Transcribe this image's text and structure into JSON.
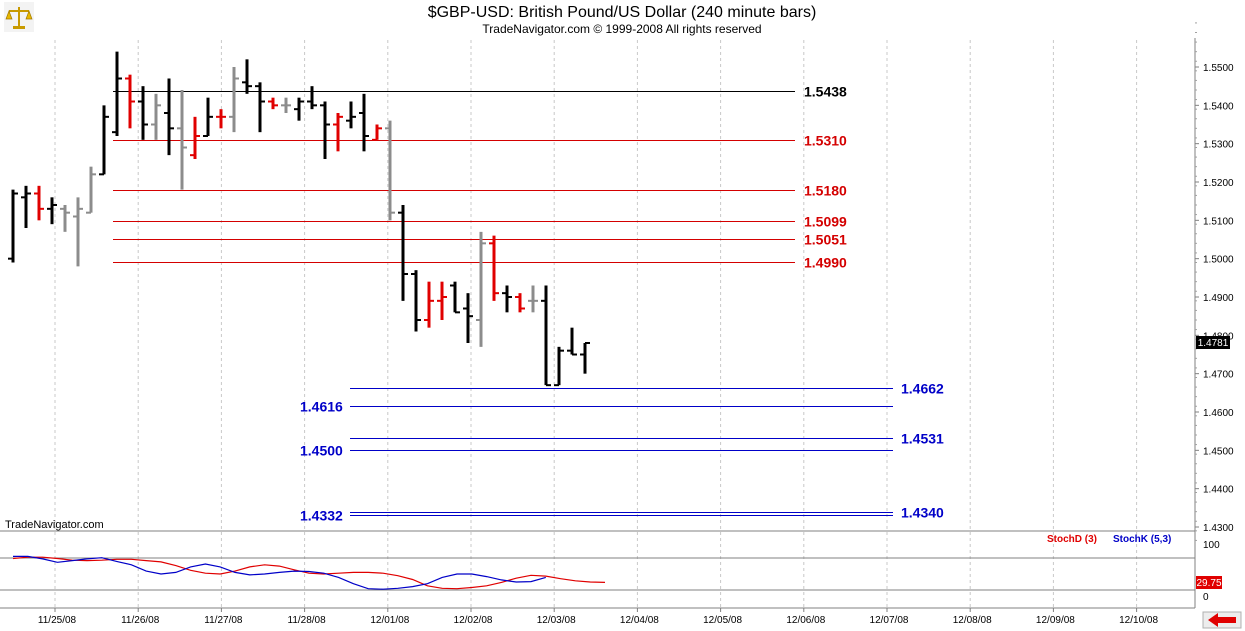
{
  "title": "$GBP-USD:  British Pound/US Dollar  (240 minute bars)",
  "subtitle": "TradeNavigator.com © 1999-2008 All rights reserved",
  "watermark": "TradeNavigator.com",
  "colors": {
    "up": "#000000",
    "down": "#e00000",
    "neutral": "#8c8c8c",
    "resistance": "#d40000",
    "support": "#0000c8",
    "stochD": "#e00000",
    "stochK": "#0000c8"
  },
  "icons": {
    "logo": "gold-scales-icon",
    "scroll": "red-left-arrow-icon"
  },
  "current_price": "1.4781",
  "chart_data": [
    {
      "type": "ohlc",
      "title": "$GBP-USD:  British Pound/US Dollar  (240 minute bars)",
      "ylim": [
        1.4265,
        1.5615
      ],
      "yticks": [
        "1.5500",
        "1.5400",
        "1.5300",
        "1.5200",
        "1.5100",
        "1.5000",
        "1.4900",
        "1.4800",
        "1.4700",
        "1.4600",
        "1.4500",
        "1.4400",
        "1.4300"
      ],
      "x_categories": [
        "11/25/08",
        "11/26/08",
        "11/27/08",
        "11/28/08",
        "12/01/08",
        "12/02/08",
        "12/03/08",
        "12/04/08",
        "12/05/08",
        "12/06/08",
        "12/07/08",
        "12/08/08",
        "12/09/08",
        "12/10/08"
      ],
      "bars": [
        {
          "o": 1.5,
          "h": 1.518,
          "l": 1.499,
          "c": 1.517,
          "d": "up"
        },
        {
          "o": 1.516,
          "h": 1.519,
          "l": 1.508,
          "c": 1.517,
          "d": "up"
        },
        {
          "o": 1.517,
          "h": 1.519,
          "l": 1.51,
          "c": 1.513,
          "d": "down"
        },
        {
          "o": 1.513,
          "h": 1.516,
          "l": 1.509,
          "c": 1.514,
          "d": "up"
        },
        {
          "o": 1.513,
          "h": 1.514,
          "l": 1.507,
          "c": 1.512,
          "d": "neutral"
        },
        {
          "o": 1.511,
          "h": 1.516,
          "l": 1.498,
          "c": 1.513,
          "d": "neutral"
        },
        {
          "o": 1.512,
          "h": 1.524,
          "l": 1.512,
          "c": 1.522,
          "d": "neutral"
        },
        {
          "o": 1.522,
          "h": 1.54,
          "l": 1.522,
          "c": 1.537,
          "d": "up"
        },
        {
          "o": 1.533,
          "h": 1.554,
          "l": 1.532,
          "c": 1.547,
          "d": "up"
        },
        {
          "o": 1.547,
          "h": 1.548,
          "l": 1.534,
          "c": 1.541,
          "d": "down"
        },
        {
          "o": 1.541,
          "h": 1.545,
          "l": 1.531,
          "c": 1.535,
          "d": "up"
        },
        {
          "o": 1.535,
          "h": 1.543,
          "l": 1.531,
          "c": 1.54,
          "d": "neutral"
        },
        {
          "o": 1.538,
          "h": 1.547,
          "l": 1.527,
          "c": 1.534,
          "d": "up"
        },
        {
          "o": 1.534,
          "h": 1.544,
          "l": 1.518,
          "c": 1.529,
          "d": "neutral"
        },
        {
          "o": 1.527,
          "h": 1.537,
          "l": 1.526,
          "c": 1.532,
          "d": "down"
        },
        {
          "o": 1.532,
          "h": 1.542,
          "l": 1.532,
          "c": 1.537,
          "d": "up"
        },
        {
          "o": 1.537,
          "h": 1.539,
          "l": 1.534,
          "c": 1.537,
          "d": "down"
        },
        {
          "o": 1.537,
          "h": 1.55,
          "l": 1.533,
          "c": 1.547,
          "d": "neutral"
        },
        {
          "o": 1.546,
          "h": 1.552,
          "l": 1.543,
          "c": 1.545,
          "d": "up"
        },
        {
          "o": 1.545,
          "h": 1.546,
          "l": 1.533,
          "c": 1.541,
          "d": "up"
        },
        {
          "o": 1.541,
          "h": 1.542,
          "l": 1.539,
          "c": 1.54,
          "d": "down"
        },
        {
          "o": 1.54,
          "h": 1.542,
          "l": 1.538,
          "c": 1.54,
          "d": "neutral"
        },
        {
          "o": 1.539,
          "h": 1.542,
          "l": 1.536,
          "c": 1.541,
          "d": "up"
        },
        {
          "o": 1.541,
          "h": 1.545,
          "l": 1.539,
          "c": 1.54,
          "d": "up"
        },
        {
          "o": 1.54,
          "h": 1.541,
          "l": 1.526,
          "c": 1.535,
          "d": "up"
        },
        {
          "o": 1.535,
          "h": 1.538,
          "l": 1.528,
          "c": 1.537,
          "d": "down"
        },
        {
          "o": 1.536,
          "h": 1.541,
          "l": 1.534,
          "c": 1.537,
          "d": "up"
        },
        {
          "o": 1.538,
          "h": 1.543,
          "l": 1.528,
          "c": 1.532,
          "d": "up"
        },
        {
          "o": 1.531,
          "h": 1.535,
          "l": 1.531,
          "c": 1.534,
          "d": "down"
        },
        {
          "o": 1.534,
          "h": 1.536,
          "l": 1.51,
          "c": 1.512,
          "d": "neutral"
        },
        {
          "o": 1.512,
          "h": 1.514,
          "l": 1.489,
          "c": 1.496,
          "d": "up"
        },
        {
          "o": 1.496,
          "h": 1.497,
          "l": 1.481,
          "c": 1.484,
          "d": "up"
        },
        {
          "o": 1.484,
          "h": 1.494,
          "l": 1.482,
          "c": 1.489,
          "d": "down"
        },
        {
          "o": 1.489,
          "h": 1.494,
          "l": 1.484,
          "c": 1.49,
          "d": "down"
        },
        {
          "o": 1.493,
          "h": 1.494,
          "l": 1.486,
          "c": 1.486,
          "d": "up"
        },
        {
          "o": 1.487,
          "h": 1.491,
          "l": 1.478,
          "c": 1.485,
          "d": "up"
        },
        {
          "o": 1.484,
          "h": 1.507,
          "l": 1.477,
          "c": 1.504,
          "d": "neutral"
        },
        {
          "o": 1.504,
          "h": 1.506,
          "l": 1.489,
          "c": 1.491,
          "d": "down"
        },
        {
          "o": 1.491,
          "h": 1.493,
          "l": 1.486,
          "c": 1.49,
          "d": "up"
        },
        {
          "o": 1.49,
          "h": 1.491,
          "l": 1.486,
          "c": 1.487,
          "d": "down"
        },
        {
          "o": 1.489,
          "h": 1.493,
          "l": 1.486,
          "c": 1.489,
          "d": "neutral"
        },
        {
          "o": 1.489,
          "h": 1.493,
          "l": 1.467,
          "c": 1.467,
          "d": "up"
        },
        {
          "o": 1.467,
          "h": 1.477,
          "l": 1.467,
          "c": 1.476,
          "d": "up"
        },
        {
          "o": 1.476,
          "h": 1.482,
          "l": 1.475,
          "c": 1.475,
          "d": "up"
        },
        {
          "o": 1.475,
          "h": 1.478,
          "l": 1.47,
          "c": 1.478,
          "d": "up"
        }
      ],
      "resistance_levels": [
        {
          "value": 1.5438,
          "label": "1.5438",
          "color": "black"
        },
        {
          "value": 1.531,
          "label": "1.5310",
          "color": "red"
        },
        {
          "value": 1.518,
          "label": "1.5180",
          "color": "red"
        },
        {
          "value": 1.5099,
          "label": "1.5099",
          "color": "red"
        },
        {
          "value": 1.5051,
          "label": "1.5051",
          "color": "red"
        },
        {
          "value": 1.499,
          "label": "1.4990",
          "color": "red"
        }
      ],
      "support_levels": [
        {
          "value": 1.4662,
          "label": "1.4662",
          "side": "right"
        },
        {
          "value": 1.4616,
          "label": "1.4616",
          "side": "left"
        },
        {
          "value": 1.4531,
          "label": "1.4531",
          "side": "right"
        },
        {
          "value": 1.45,
          "label": "1.4500",
          "side": "left"
        },
        {
          "value": 1.434,
          "label": "1.4340",
          "side": "right"
        },
        {
          "value": 1.4332,
          "label": "1.4332",
          "side": "left"
        }
      ]
    },
    {
      "type": "line",
      "title": "",
      "ylim": [
        0,
        100
      ],
      "yticks": [
        "100",
        "0"
      ],
      "current_value": "29.75",
      "series": [
        {
          "name": "StochD (3)",
          "color": "red",
          "values": [
            75,
            78,
            78,
            75,
            71,
            70,
            71,
            73,
            73,
            70,
            67,
            58,
            47,
            40,
            38,
            45,
            55,
            60,
            57,
            48,
            40,
            38,
            40,
            42,
            42,
            40,
            34,
            25,
            10,
            4,
            3,
            6,
            10,
            18,
            28,
            35,
            33,
            27,
            22,
            19,
            18
          ]
        },
        {
          "name": "StochK (5,3)",
          "color": "blue",
          "values": [
            80,
            80,
            74,
            66,
            70,
            74,
            77,
            68,
            60,
            45,
            38,
            42,
            55,
            62,
            55,
            42,
            36,
            38,
            42,
            45,
            44,
            40,
            30,
            15,
            3,
            2,
            4,
            8,
            15,
            30,
            38,
            38,
            32,
            24,
            19,
            20,
            30
          ]
        }
      ]
    }
  ]
}
